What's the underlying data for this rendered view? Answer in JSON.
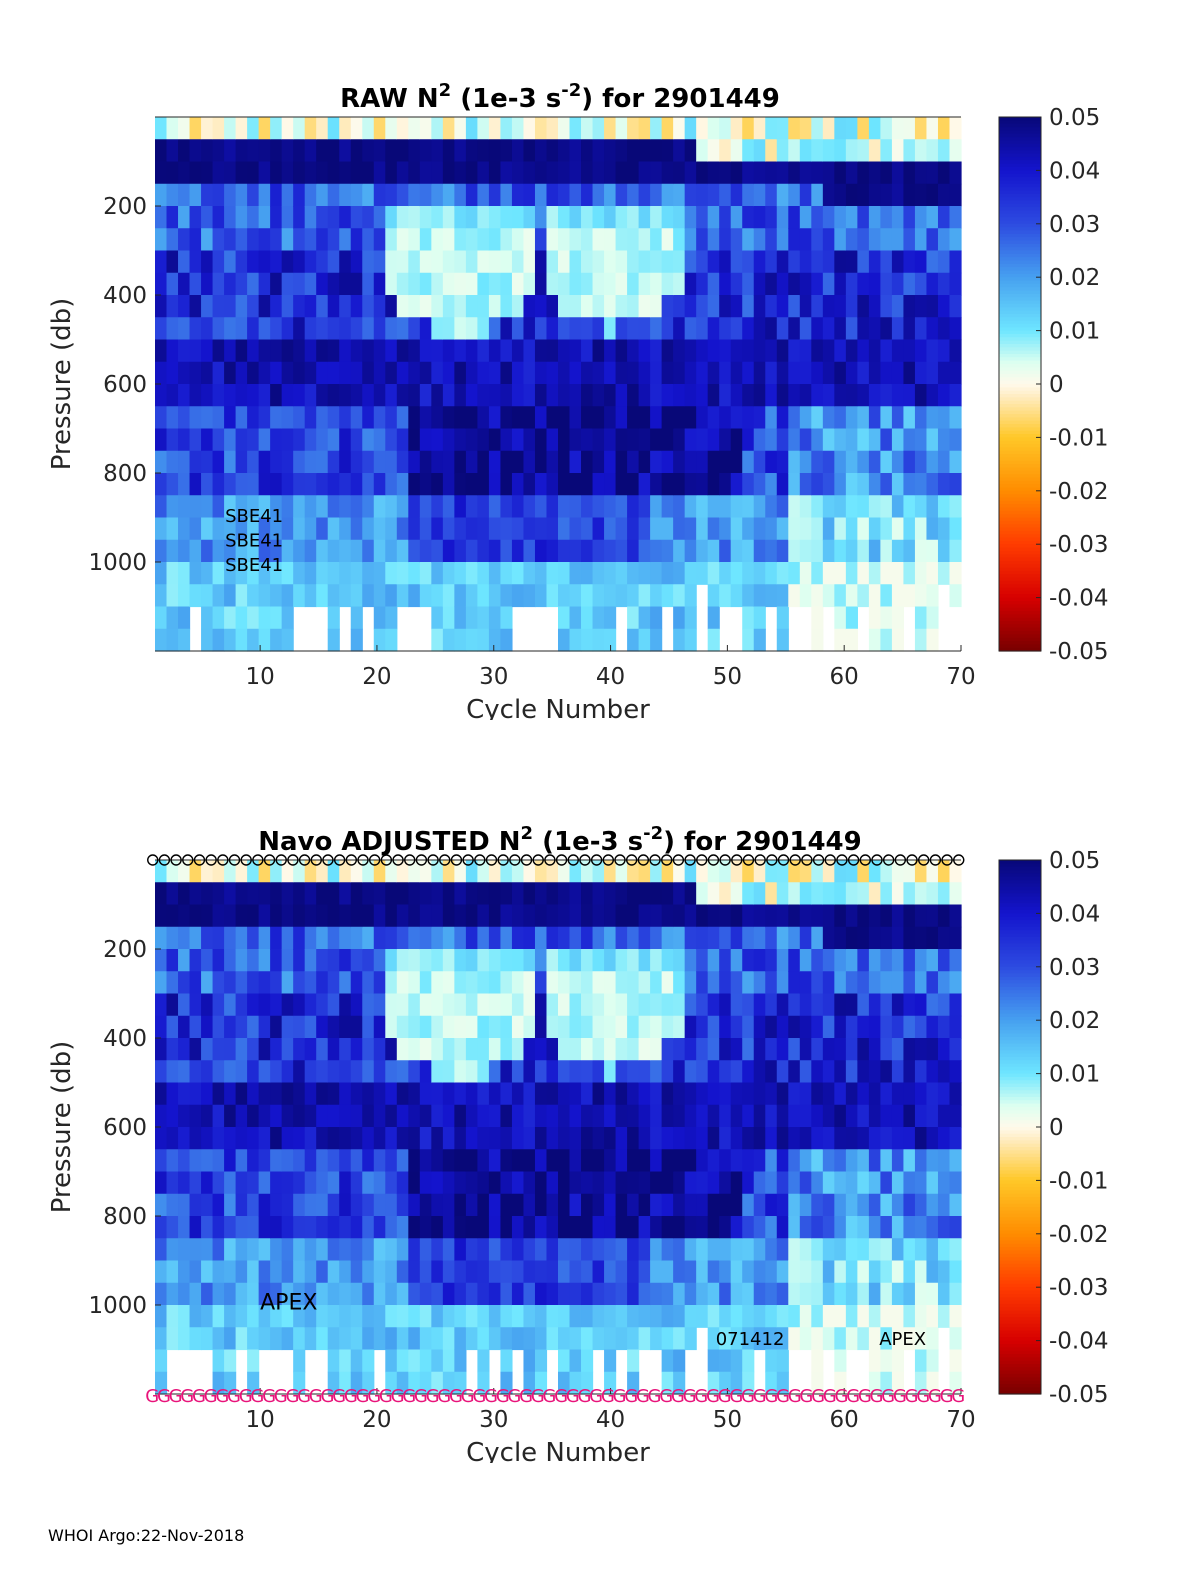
{
  "footer": "WHOI Argo:22-Nov-2018",
  "charts": [
    {
      "type": "heatmap",
      "title": "RAW N² (1e-3 s⁻²) for 2901449",
      "title_parts": {
        "pre": "RAW N",
        "sup1": "2",
        "mid": " (1e-3 s",
        "sup2": "-2",
        "post": ") for 2901449"
      },
      "xlabel": "Cycle Number",
      "ylabel": "Pressure (db)",
      "xlim": [
        1,
        70
      ],
      "ylim": [
        0,
        1200
      ],
      "xticks": [
        10,
        20,
        30,
        40,
        50,
        60,
        70
      ],
      "yticks": [
        200,
        400,
        600,
        800,
        1000
      ],
      "colorbar": {
        "min": -0.05,
        "max": 0.05,
        "ticks": [
          "0.05",
          "0.04",
          "0.03",
          "0.02",
          "0.01",
          "0",
          "-0.01",
          "-0.02",
          "-0.03",
          "-0.04",
          "-0.05"
        ]
      },
      "annotations": [
        {
          "text": "SBE41",
          "x": 7,
          "y": 910
        },
        {
          "text": "SBE41",
          "x": 7,
          "y": 965
        },
        {
          "text": "SBE41",
          "x": 7,
          "y": 1020
        }
      ],
      "top_markers": null,
      "bottom_markers": null
    },
    {
      "type": "heatmap",
      "title": "Navo  ADJUSTED N² (1e-3 s⁻²) for 2901449",
      "title_parts": {
        "pre": "Navo  ADJUSTED N",
        "sup1": "2",
        "mid": " (1e-3 s",
        "sup2": "-2",
        "post": ") for 2901449"
      },
      "xlabel": "Cycle Number",
      "ylabel": "Pressure (db)",
      "xlim": [
        1,
        70
      ],
      "ylim": [
        0,
        1200
      ],
      "xticks": [
        10,
        20,
        30,
        40,
        50,
        60,
        70
      ],
      "yticks": [
        200,
        400,
        600,
        800,
        1000
      ],
      "colorbar": {
        "min": -0.05,
        "max": 0.05,
        "ticks": [
          "0.05",
          "0.04",
          "0.03",
          "0.02",
          "0.01",
          "0",
          "-0.01",
          "-0.02",
          "-0.03",
          "-0.04",
          "-0.05"
        ]
      },
      "annotations": [
        {
          "text": "APEX",
          "x": 10,
          "y": 1010,
          "big": true
        },
        {
          "text": "071412",
          "x": 49,
          "y": 1090
        },
        {
          "text": "APEX",
          "x": 63,
          "y": 1090
        }
      ],
      "top_markers": {
        "symbol": "o",
        "color": "#000000",
        "count": 70
      },
      "bottom_markers": {
        "symbol": "G",
        "color": "#e8137a",
        "count": 70
      }
    }
  ],
  "chart_data": [
    {
      "type": "heatmap",
      "title": "RAW N2 (1e-3 s-2) for 2901449",
      "x": "cycles 1-70",
      "y": "pressure 0-1200 db, 50 db bins",
      "value_range": [
        -0.05,
        0.05
      ],
      "description_of_field": "near-zero/negative speckle in top ~100 db; strong stratification (~0.05) around 100-200 db; low N2 (~0.005) core 200-500 db for cycles 20-45; moderate 0.03-0.05 from 500-800 db; decreasing to ~0.01-0.02 below 900 db; sparse coverage below 1100 db"
    },
    {
      "type": "heatmap",
      "title": "Navo ADJUSTED N2 (1e-3 s-2) for 2901449",
      "x": "cycles 1-70",
      "y": "pressure 0-1200 db, 50 db bins",
      "value_range": [
        -0.05,
        0.05
      ],
      "description_of_field": "same structure as raw field"
    }
  ]
}
